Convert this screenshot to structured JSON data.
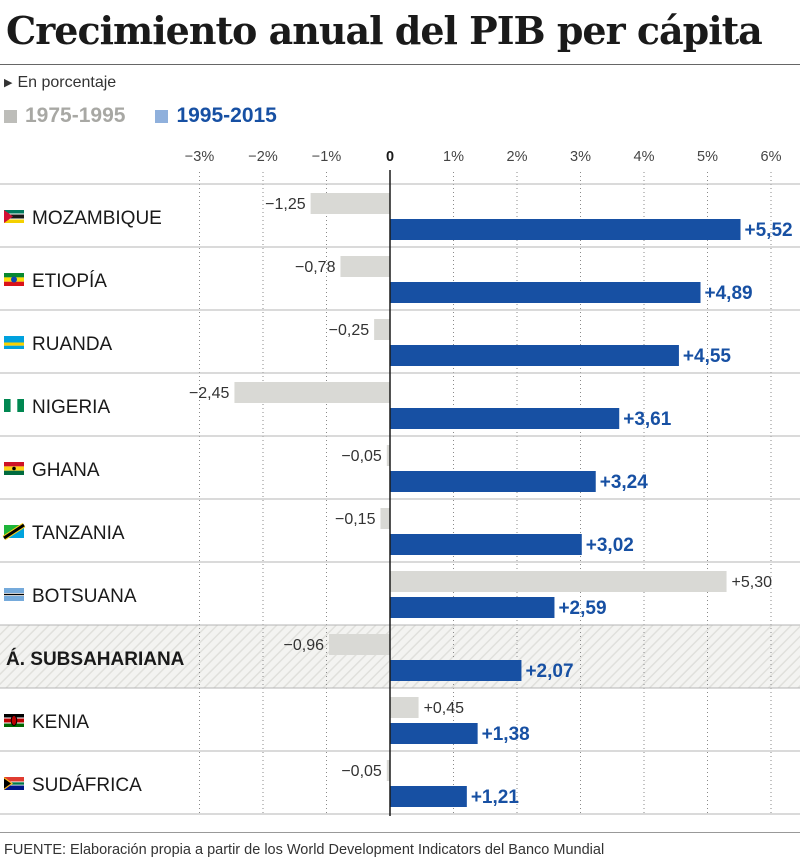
{
  "chart_data": {
    "type": "bar",
    "orientation": "horizontal",
    "title": "Crecimiento anual del PIB per cápita",
    "subtitle": "En porcentaje",
    "xlim": [
      -3.0,
      6.3
    ],
    "xticks": [
      {
        "value": -3,
        "label": "−3%"
      },
      {
        "value": -2,
        "label": "−2%"
      },
      {
        "value": -1,
        "label": "−1%"
      },
      {
        "value": 0,
        "label": "0"
      },
      {
        "value": 1,
        "label": "1%"
      },
      {
        "value": 2,
        "label": "2%"
      },
      {
        "value": 3,
        "label": "3%"
      },
      {
        "value": 4,
        "label": "4%"
      },
      {
        "value": 5,
        "label": "5%"
      },
      {
        "value": 6,
        "label": "6%"
      }
    ],
    "grid": true,
    "legend_position": "top-left",
    "categories": [
      "MOZAMBIQUE",
      "ETIOPÍA",
      "RUANDA",
      "NIGERIA",
      "GHANA",
      "TANZANIA",
      "BOTSUANA",
      "Á. SUBSAHARIANA",
      "KENIA",
      "SUDÁFRICA"
    ],
    "highlight_category": "Á. SUBSAHARIANA",
    "series": [
      {
        "name": "1975-1995",
        "color": "#d9d9d5",
        "values": [
          -1.25,
          -0.78,
          -0.25,
          -2.45,
          -0.05,
          -0.15,
          5.3,
          -0.96,
          0.45,
          -0.05
        ],
        "labels": [
          "−1,25",
          "−0,78",
          "−0,25",
          "−2,45",
          "−0,05",
          "−0,15",
          "+5,30",
          "−0,96",
          "+0,45",
          "−0,05"
        ]
      },
      {
        "name": "1995-2015",
        "color": "#1750a3",
        "values": [
          5.52,
          4.89,
          4.55,
          3.61,
          3.24,
          3.02,
          2.59,
          2.07,
          1.38,
          1.21
        ],
        "labels": [
          "+5,52",
          "+4,89",
          "+4,55",
          "+3,61",
          "+3,24",
          "+3,02",
          "+2,59",
          "+2,07",
          "+1,38",
          "+1,21"
        ]
      }
    ],
    "flags": [
      "mozambique-flag-icon",
      "ethiopia-flag-icon",
      "rwanda-flag-icon",
      "nigeria-flag-icon",
      "ghana-flag-icon",
      "tanzania-flag-icon",
      "botswana-flag-icon",
      "",
      "kenya-flag-icon",
      "south-africa-flag-icon"
    ],
    "source": "FUENTE: Elaboración propia a partir de los World Development Indicators del Banco Mundial"
  }
}
